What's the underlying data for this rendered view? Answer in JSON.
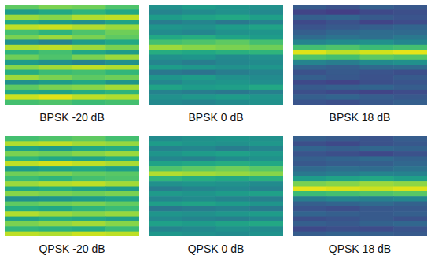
{
  "chart_data": [
    {
      "type": "heatmap",
      "title": "BPSK -20 dB",
      "color": "viridis",
      "zlim": [
        0,
        1
      ],
      "tick_labels": false,
      "cells": [
        [
          0.75,
          0.8,
          0.78,
          0.72
        ],
        [
          0.55,
          0.6,
          0.65,
          0.6
        ],
        [
          0.85,
          0.82,
          0.88,
          0.9
        ],
        [
          0.6,
          0.55,
          0.5,
          0.58
        ],
        [
          0.9,
          0.92,
          0.88,
          0.85
        ],
        [
          0.7,
          0.65,
          0.72,
          0.78
        ],
        [
          0.8,
          0.85,
          0.8,
          0.75
        ],
        [
          0.5,
          0.45,
          0.55,
          0.6
        ],
        [
          0.88,
          0.9,
          0.85,
          0.8
        ],
        [
          0.65,
          0.7,
          0.6,
          0.55
        ],
        [
          0.78,
          0.72,
          0.8,
          0.85
        ],
        [
          0.55,
          0.5,
          0.45,
          0.5
        ],
        [
          0.82,
          0.86,
          0.9,
          0.88
        ],
        [
          0.62,
          0.68,
          0.7,
          0.66
        ],
        [
          0.85,
          0.8,
          0.75,
          0.78
        ],
        [
          0.5,
          0.55,
          0.6,
          0.52
        ],
        [
          0.75,
          0.8,
          0.82,
          0.86
        ],
        [
          0.6,
          0.58,
          0.62,
          0.65
        ],
        [
          0.92,
          0.95,
          0.9,
          0.88
        ],
        [
          0.7,
          0.72,
          0.68,
          0.7
        ]
      ]
    },
    {
      "type": "heatmap",
      "title": "BPSK 0 dB",
      "color": "viridis",
      "zlim": [
        0,
        1
      ],
      "tick_labels": false,
      "cells": [
        [
          0.5,
          0.55,
          0.52,
          0.5
        ],
        [
          0.45,
          0.48,
          0.5,
          0.47
        ],
        [
          0.55,
          0.58,
          0.6,
          0.56
        ],
        [
          0.42,
          0.45,
          0.4,
          0.44
        ],
        [
          0.52,
          0.5,
          0.55,
          0.58
        ],
        [
          0.48,
          0.46,
          0.5,
          0.52
        ],
        [
          0.6,
          0.62,
          0.58,
          0.55
        ],
        [
          0.7,
          0.72,
          0.75,
          0.7
        ],
        [
          0.85,
          0.82,
          0.8,
          0.78
        ],
        [
          0.62,
          0.6,
          0.63,
          0.65
        ],
        [
          0.5,
          0.52,
          0.48,
          0.5
        ],
        [
          0.45,
          0.42,
          0.46,
          0.48
        ],
        [
          0.55,
          0.53,
          0.5,
          0.52
        ],
        [
          0.4,
          0.38,
          0.42,
          0.45
        ],
        [
          0.52,
          0.55,
          0.5,
          0.48
        ],
        [
          0.46,
          0.5,
          0.52,
          0.49
        ],
        [
          0.58,
          0.55,
          0.56,
          0.6
        ],
        [
          0.44,
          0.42,
          0.4,
          0.43
        ],
        [
          0.5,
          0.53,
          0.55,
          0.52
        ],
        [
          0.47,
          0.45,
          0.48,
          0.5
        ]
      ]
    },
    {
      "type": "heatmap",
      "title": "BPSK 18 dB",
      "color": "viridis",
      "zlim": [
        0,
        1
      ],
      "tick_labels": false,
      "cells": [
        [
          0.28,
          0.25,
          0.3,
          0.27
        ],
        [
          0.2,
          0.18,
          0.22,
          0.24
        ],
        [
          0.3,
          0.32,
          0.28,
          0.26
        ],
        [
          0.22,
          0.25,
          0.2,
          0.23
        ],
        [
          0.26,
          0.28,
          0.3,
          0.32
        ],
        [
          0.3,
          0.33,
          0.35,
          0.34
        ],
        [
          0.35,
          0.38,
          0.36,
          0.4
        ],
        [
          0.45,
          0.48,
          0.5,
          0.46
        ],
        [
          0.7,
          0.72,
          0.68,
          0.7
        ],
        [
          0.95,
          0.9,
          0.93,
          0.96
        ],
        [
          0.72,
          0.7,
          0.75,
          0.73
        ],
        [
          0.45,
          0.42,
          0.48,
          0.5
        ],
        [
          0.32,
          0.3,
          0.34,
          0.35
        ],
        [
          0.25,
          0.28,
          0.26,
          0.24
        ],
        [
          0.3,
          0.27,
          0.25,
          0.28
        ],
        [
          0.22,
          0.2,
          0.24,
          0.26
        ],
        [
          0.28,
          0.3,
          0.32,
          0.29
        ],
        [
          0.24,
          0.22,
          0.2,
          0.23
        ],
        [
          0.3,
          0.32,
          0.29,
          0.27
        ],
        [
          0.26,
          0.24,
          0.27,
          0.3
        ]
      ]
    },
    {
      "type": "heatmap",
      "title": "QPSK -20 dB",
      "color": "viridis",
      "zlim": [
        0,
        1
      ],
      "tick_labels": false,
      "cells": [
        [
          0.7,
          0.72,
          0.75,
          0.7
        ],
        [
          0.88,
          0.9,
          0.86,
          0.84
        ],
        [
          0.58,
          0.55,
          0.6,
          0.62
        ],
        [
          0.8,
          0.78,
          0.82,
          0.85
        ],
        [
          0.65,
          0.6,
          0.58,
          0.62
        ],
        [
          0.9,
          0.93,
          0.9,
          0.87
        ],
        [
          0.55,
          0.58,
          0.6,
          0.56
        ],
        [
          0.78,
          0.8,
          0.76,
          0.74
        ],
        [
          0.68,
          0.65,
          0.7,
          0.72
        ],
        [
          0.85,
          0.88,
          0.9,
          0.86
        ],
        [
          0.6,
          0.62,
          0.58,
          0.55
        ],
        [
          0.82,
          0.8,
          0.78,
          0.8
        ],
        [
          0.5,
          0.52,
          0.55,
          0.58
        ],
        [
          0.75,
          0.78,
          0.8,
          0.76
        ],
        [
          0.62,
          0.6,
          0.65,
          0.68
        ],
        [
          0.88,
          0.85,
          0.82,
          0.84
        ],
        [
          0.58,
          0.62,
          0.6,
          0.57
        ],
        [
          0.8,
          0.83,
          0.86,
          0.82
        ],
        [
          0.66,
          0.64,
          0.62,
          0.68
        ],
        [
          0.9,
          0.88,
          0.92,
          0.9
        ]
      ]
    },
    {
      "type": "heatmap",
      "title": "QPSK 0 dB",
      "color": "viridis",
      "zlim": [
        0,
        1
      ],
      "tick_labels": false,
      "cells": [
        [
          0.48,
          0.5,
          0.52,
          0.5
        ],
        [
          0.55,
          0.52,
          0.5,
          0.53
        ],
        [
          0.44,
          0.46,
          0.42,
          0.45
        ],
        [
          0.52,
          0.55,
          0.57,
          0.54
        ],
        [
          0.46,
          0.44,
          0.48,
          0.5
        ],
        [
          0.58,
          0.6,
          0.62,
          0.6
        ],
        [
          0.72,
          0.75,
          0.78,
          0.74
        ],
        [
          0.88,
          0.86,
          0.84,
          0.82
        ],
        [
          0.65,
          0.62,
          0.6,
          0.63
        ],
        [
          0.5,
          0.52,
          0.5,
          0.48
        ],
        [
          0.42,
          0.45,
          0.47,
          0.44
        ],
        [
          0.54,
          0.52,
          0.55,
          0.57
        ],
        [
          0.46,
          0.48,
          0.45,
          0.43
        ],
        [
          0.56,
          0.58,
          0.55,
          0.52
        ],
        [
          0.4,
          0.42,
          0.44,
          0.41
        ],
        [
          0.52,
          0.5,
          0.53,
          0.55
        ],
        [
          0.47,
          0.45,
          0.43,
          0.46
        ],
        [
          0.57,
          0.55,
          0.58,
          0.6
        ],
        [
          0.45,
          0.47,
          0.5,
          0.48
        ],
        [
          0.53,
          0.5,
          0.48,
          0.51
        ]
      ]
    },
    {
      "type": "heatmap",
      "title": "QPSK 18 dB",
      "color": "viridis",
      "zlim": [
        0,
        1
      ],
      "tick_labels": false,
      "cells": [
        [
          0.3,
          0.28,
          0.26,
          0.29
        ],
        [
          0.24,
          0.22,
          0.25,
          0.27
        ],
        [
          0.32,
          0.3,
          0.33,
          0.31
        ],
        [
          0.26,
          0.24,
          0.22,
          0.25
        ],
        [
          0.3,
          0.32,
          0.34,
          0.31
        ],
        [
          0.27,
          0.29,
          0.3,
          0.33
        ],
        [
          0.34,
          0.36,
          0.35,
          0.38
        ],
        [
          0.4,
          0.42,
          0.45,
          0.44
        ],
        [
          0.55,
          0.58,
          0.6,
          0.56
        ],
        [
          0.8,
          0.82,
          0.85,
          0.83
        ],
        [
          0.96,
          0.94,
          0.92,
          0.95
        ],
        [
          0.68,
          0.7,
          0.72,
          0.74
        ],
        [
          0.42,
          0.45,
          0.43,
          0.46
        ],
        [
          0.3,
          0.32,
          0.34,
          0.31
        ],
        [
          0.26,
          0.24,
          0.27,
          0.28
        ],
        [
          0.32,
          0.3,
          0.28,
          0.3
        ],
        [
          0.24,
          0.26,
          0.28,
          0.25
        ],
        [
          0.3,
          0.28,
          0.31,
          0.33
        ],
        [
          0.22,
          0.24,
          0.23,
          0.26
        ],
        [
          0.29,
          0.31,
          0.3,
          0.28
        ]
      ]
    }
  ]
}
